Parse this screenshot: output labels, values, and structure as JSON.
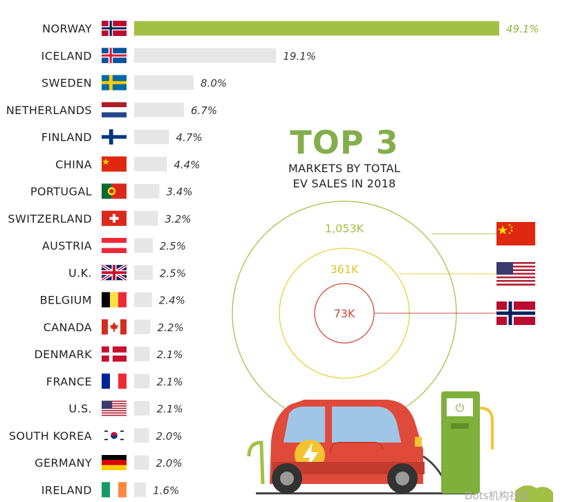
{
  "chart_data": {
    "type": "bar",
    "orientation": "horizontal",
    "categories": [
      "NORWAY",
      "ICELAND",
      "SWEDEN",
      "NETHERLANDS",
      "FINLAND",
      "CHINA",
      "PORTUGAL",
      "SWITZERLAND",
      "AUSTRIA",
      "U.K.",
      "BELGIUM",
      "CANADA",
      "DENMARK",
      "FRANCE",
      "U.S.",
      "SOUTH KOREA",
      "GERMANY",
      "IRELAND"
    ],
    "values": [
      49.1,
      19.1,
      8.0,
      6.7,
      4.7,
      4.4,
      3.4,
      3.2,
      2.5,
      2.5,
      2.4,
      2.2,
      2.1,
      2.1,
      2.1,
      2.0,
      2.0,
      1.6
    ],
    "value_labels": [
      "49.1%",
      "19.1%",
      "8.0%",
      "6.7%",
      "4.7%",
      "4.4%",
      "3.4%",
      "3.2%",
      "2.5%",
      "2.5%",
      "2.4%",
      "2.2%",
      "2.1%",
      "2.1%",
      "2.1%",
      "2.0%",
      "2.0%",
      "1.6%"
    ],
    "flags": [
      "norway-flag",
      "iceland-flag",
      "sweden-flag",
      "netherlands-flag",
      "finland-flag",
      "china-flag",
      "portugal-flag",
      "switzerland-flag",
      "austria-flag",
      "uk-flag",
      "belgium-flag",
      "canada-flag",
      "denmark-flag",
      "france-flag",
      "us-flag",
      "south-korea-flag",
      "germany-flag",
      "ireland-flag"
    ],
    "highlight_color": "#a3c046",
    "bar_color": "#e6e6e6",
    "xlim": [
      0,
      49.1
    ]
  },
  "top3": {
    "title": "TOP 3",
    "subtitle_line1": "MARKETS BY TOTAL",
    "subtitle_line2": "EV SALES IN 2018",
    "markets": [
      {
        "label": "1,053K",
        "flag": "china-flag",
        "color": "#a3c046"
      },
      {
        "label": "361K",
        "flag": "us-flag",
        "color": "#e8cf3a"
      },
      {
        "label": "73K",
        "flag": "norway-flag",
        "color": "#c94a3c"
      }
    ]
  },
  "watermark": "Dots机构社区"
}
